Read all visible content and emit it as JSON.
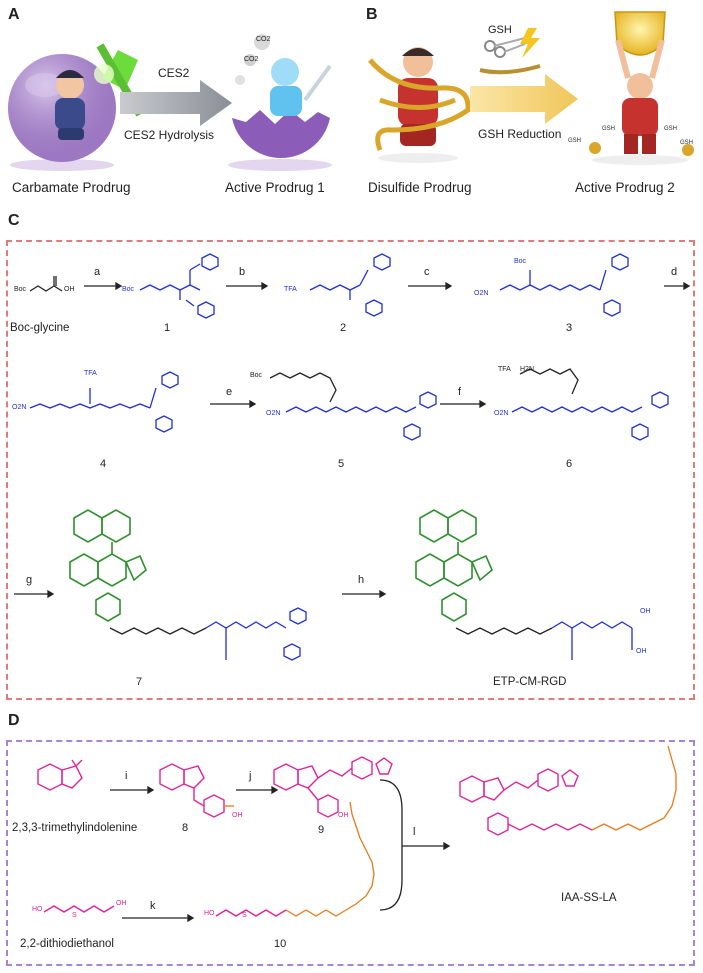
{
  "panels": {
    "a": {
      "letter": "A",
      "arrow_top_label": "CES2",
      "arrow_bottom_label": "CES2 Hydrolysis",
      "left_caption": "Carbamate Prodrug",
      "right_caption": "Active Prodrug 1",
      "bubble_labels": [
        "CO2",
        "CO2"
      ]
    },
    "b": {
      "letter": "B",
      "gsh_label": "GSH",
      "arrow_label": "GSH Reduction",
      "left_caption": "Disulfide Prodrug",
      "right_caption": "Active Prodrug 2",
      "chain_tags": [
        "GSH",
        "GSH",
        "GSH",
        "GSH"
      ]
    },
    "c": {
      "letter": "C",
      "step_labels": [
        "a",
        "b",
        "c",
        "d",
        "e",
        "f",
        "g",
        "h"
      ],
      "compound_labels": [
        "Boc-glycine",
        "1",
        "2",
        "3",
        "4",
        "5",
        "6",
        "7",
        "ETP-CM-RGD"
      ],
      "atom_labels": {
        "boc": "Boc",
        "tfa": "TFA",
        "no2": "O2N",
        "nh2": "H2N",
        "oh": "OH",
        "o": "O",
        "h": "H",
        "n": "N",
        "nh": "NH"
      }
    },
    "d": {
      "letter": "D",
      "step_labels": [
        "i",
        "j",
        "k",
        "l"
      ],
      "compound_labels": [
        "2,3,3-trimethylindolenine",
        "8",
        "9",
        "2,2-dithiodiethanol",
        "10",
        "IAA-SS-LA"
      ],
      "atom_labels": {
        "ho": "HO",
        "oh": "OH",
        "s": "S",
        "n": "N"
      }
    }
  }
}
